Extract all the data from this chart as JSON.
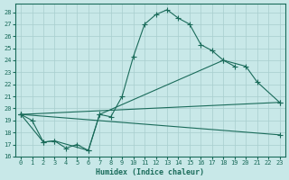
{
  "xlabel": "Humidex (Indice chaleur)",
  "bg_color": "#c8e8e8",
  "grid_color": "#a8cece",
  "line_color": "#1a6b5a",
  "xlim": [
    -0.5,
    23.5
  ],
  "ylim": [
    16.0,
    28.7
  ],
  "xticks": [
    0,
    1,
    2,
    3,
    4,
    5,
    6,
    7,
    8,
    9,
    10,
    11,
    12,
    13,
    14,
    15,
    16,
    17,
    18,
    19,
    20,
    21,
    22,
    23
  ],
  "yticks": [
    16,
    17,
    18,
    19,
    20,
    21,
    22,
    23,
    24,
    25,
    26,
    27,
    28
  ],
  "series1_x": [
    0,
    1,
    2,
    3,
    4,
    5,
    6,
    7,
    8,
    9,
    10,
    11,
    12,
    13,
    14,
    15,
    16,
    17,
    18,
    19
  ],
  "series1_y": [
    19.5,
    19.0,
    17.2,
    17.3,
    16.7,
    17.0,
    16.5,
    19.5,
    19.3,
    21.0,
    24.3,
    27.0,
    27.8,
    28.2,
    27.5,
    27.0,
    25.3,
    24.8,
    24.0,
    23.5
  ],
  "series2_x": [
    0,
    2,
    3,
    6,
    7,
    18,
    20,
    21,
    23
  ],
  "series2_y": [
    19.5,
    17.2,
    17.3,
    16.5,
    19.5,
    24.0,
    23.5,
    22.2,
    20.5
  ],
  "series3_x": [
    0,
    23
  ],
  "series3_y": [
    19.5,
    20.5
  ],
  "series4_x": [
    0,
    23
  ],
  "series4_y": [
    19.5,
    17.8
  ]
}
